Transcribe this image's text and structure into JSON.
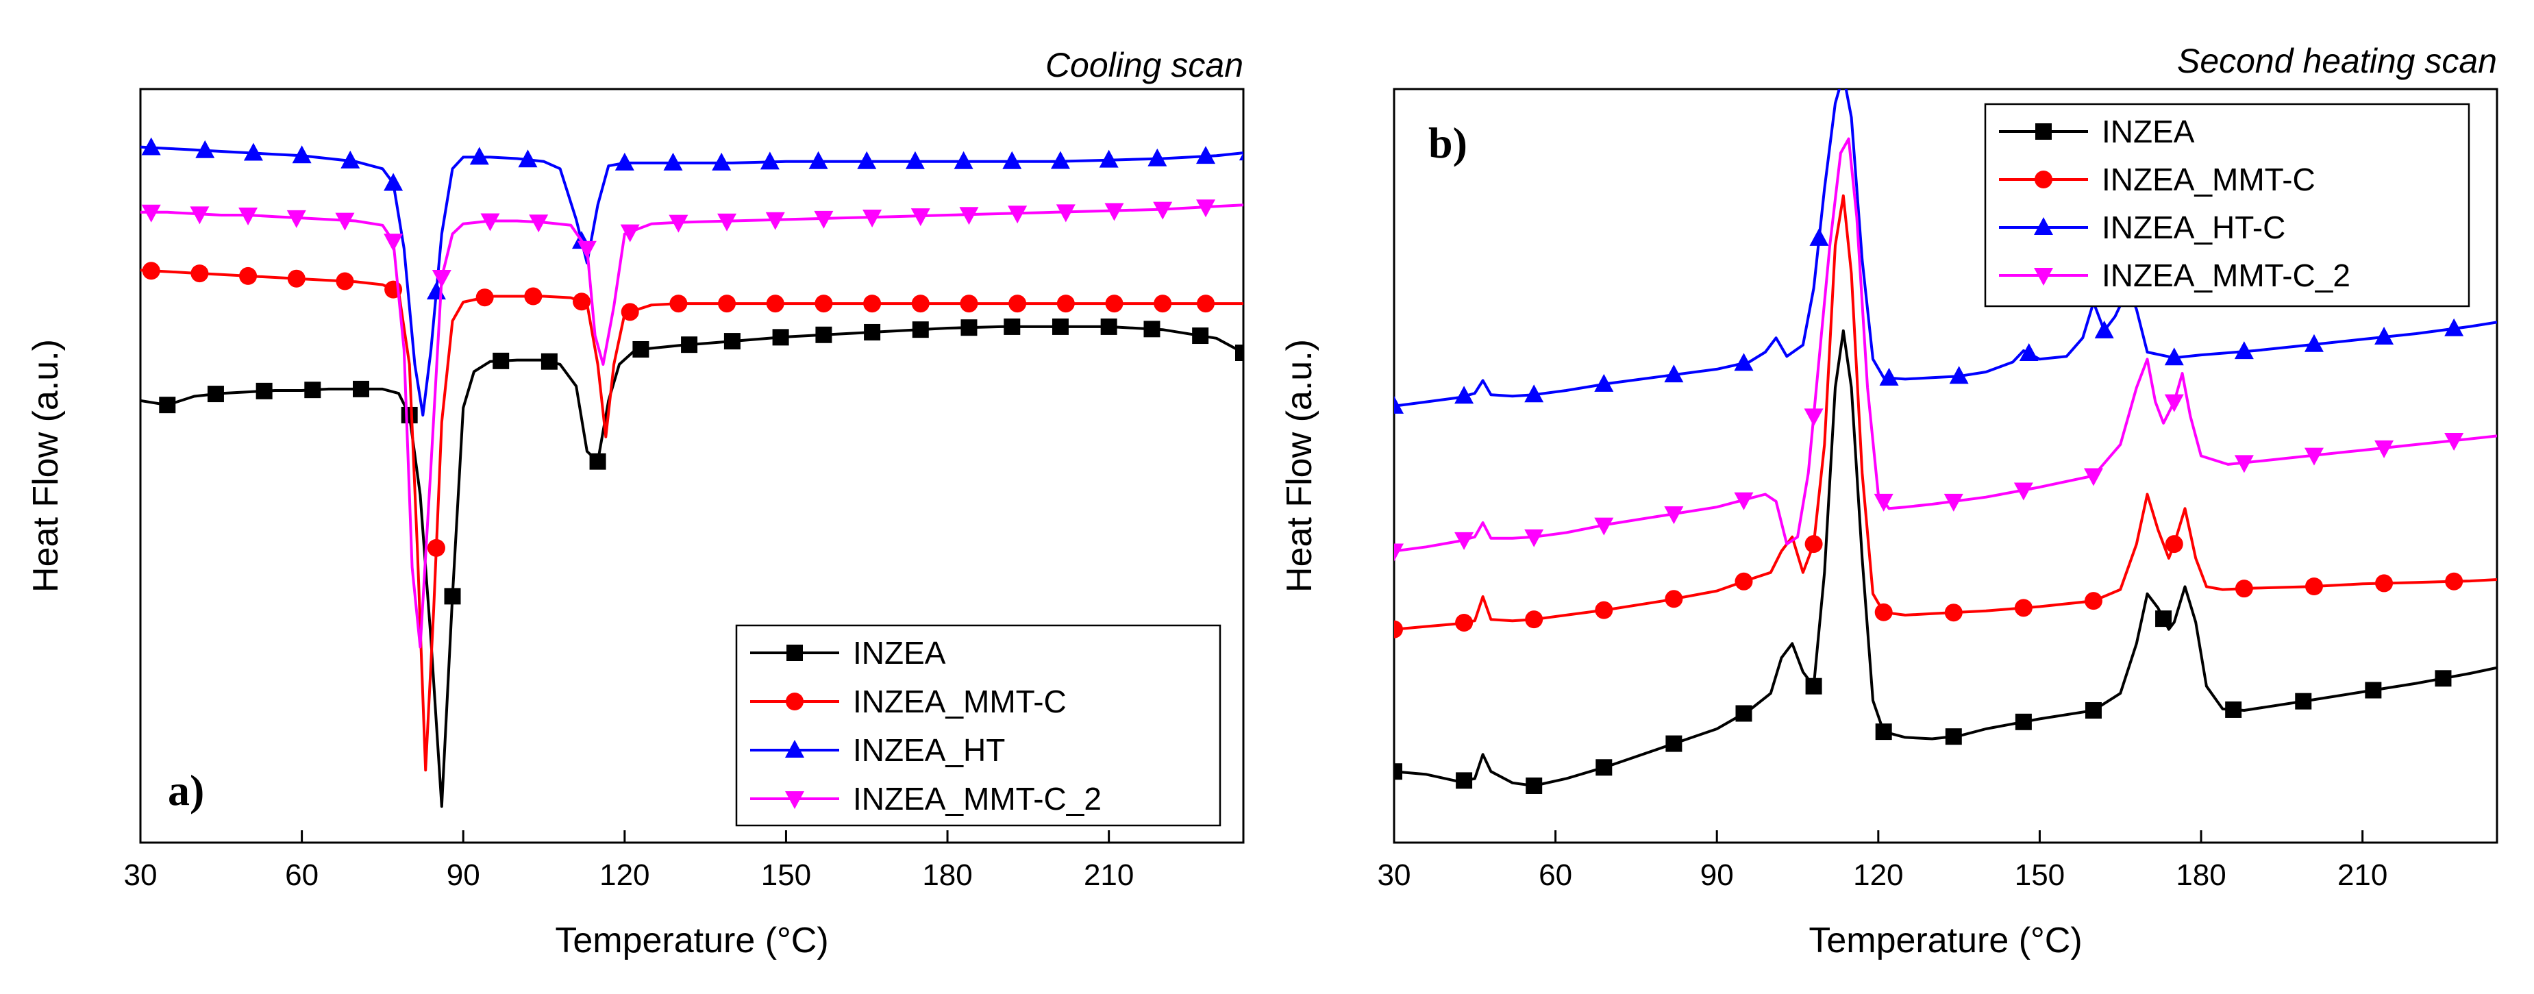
{
  "chart_data": [
    {
      "type": "line",
      "panel_label": "a)",
      "title": "Cooling scan",
      "xlabel": "Temperature (°C)",
      "ylabel": "Heat Flow (a.u.)",
      "xlim": [
        30,
        235
      ],
      "ylim": [
        -3.6,
        1.6
      ],
      "xticks": [
        30,
        60,
        90,
        120,
        150,
        180,
        210
      ],
      "grid": false,
      "yticklabels": false,
      "legend": "bottom-right",
      "series": [
        {
          "name": "INZEA",
          "color": "#000000",
          "marker": "square",
          "x": [
            30,
            35,
            40,
            45,
            50,
            55,
            60,
            65,
            70,
            75,
            78,
            80,
            82,
            84,
            86,
            88,
            90,
            92,
            95,
            100,
            105,
            108,
            111,
            113,
            115,
            117,
            119,
            122,
            130,
            140,
            150,
            160,
            170,
            180,
            190,
            200,
            210,
            220,
            230,
            235
          ],
          "y": [
            -0.55,
            -0.58,
            -0.52,
            -0.5,
            -0.49,
            -0.48,
            -0.48,
            -0.47,
            -0.47,
            -0.47,
            -0.5,
            -0.65,
            -1.2,
            -2.2,
            -3.35,
            -1.9,
            -0.6,
            -0.35,
            -0.28,
            -0.27,
            -0.27,
            -0.3,
            -0.45,
            -0.9,
            -0.97,
            -0.55,
            -0.3,
            -0.2,
            -0.17,
            -0.14,
            -0.11,
            -0.09,
            -0.07,
            -0.05,
            -0.04,
            -0.04,
            -0.04,
            -0.06,
            -0.12,
            -0.22
          ],
          "marker_x": [
            35,
            44,
            53,
            62,
            71,
            80,
            88,
            97,
            106,
            115,
            123,
            132,
            140,
            149,
            157,
            166,
            175,
            184,
            192,
            201,
            210,
            218,
            227,
            235
          ]
        },
        {
          "name": "INZEA_MMT-C",
          "color": "#ff0000",
          "marker": "circle",
          "x": [
            30,
            35,
            40,
            45,
            50,
            55,
            60,
            65,
            70,
            75,
            78,
            80,
            81.5,
            83,
            84.5,
            86,
            88,
            90,
            95,
            100,
            105,
            110,
            113,
            115,
            116.5,
            118,
            120,
            125,
            130,
            140,
            150,
            160,
            170,
            180,
            190,
            200,
            210,
            220,
            230,
            235
          ],
          "y": [
            0.35,
            0.34,
            0.33,
            0.32,
            0.31,
            0.3,
            0.29,
            0.28,
            0.27,
            0.25,
            0.2,
            -0.3,
            -1.6,
            -3.1,
            -2.0,
            -0.7,
            0.0,
            0.13,
            0.17,
            0.17,
            0.17,
            0.16,
            0.12,
            -0.3,
            -0.8,
            -0.3,
            0.05,
            0.11,
            0.12,
            0.12,
            0.12,
            0.12,
            0.12,
            0.12,
            0.12,
            0.12,
            0.12,
            0.12,
            0.12,
            0.12
          ],
          "marker_x": [
            32,
            41,
            50,
            59,
            68,
            77,
            85,
            94,
            103,
            112,
            121,
            130,
            139,
            148,
            157,
            166,
            175,
            184,
            193,
            202,
            211,
            220,
            228
          ]
        },
        {
          "name": "INZEA_HT",
          "color": "#0000ff",
          "marker": "triangle-up",
          "x": [
            30,
            35,
            40,
            45,
            50,
            55,
            60,
            65,
            70,
            75,
            77,
            79,
            81,
            82.5,
            84,
            86,
            88,
            90,
            95,
            100,
            105,
            108,
            111,
            113,
            115,
            117,
            120,
            130,
            140,
            150,
            160,
            170,
            180,
            190,
            200,
            210,
            220,
            230,
            235
          ],
          "y": [
            1.2,
            1.19,
            1.18,
            1.17,
            1.16,
            1.15,
            1.14,
            1.12,
            1.1,
            1.05,
            0.95,
            0.5,
            -0.3,
            -0.65,
            -0.2,
            0.6,
            1.05,
            1.13,
            1.13,
            1.12,
            1.1,
            1.05,
            0.7,
            0.4,
            0.8,
            1.07,
            1.09,
            1.09,
            1.09,
            1.1,
            1.1,
            1.1,
            1.1,
            1.1,
            1.1,
            1.11,
            1.12,
            1.14,
            1.16
          ],
          "marker_x": [
            32,
            42,
            51,
            60,
            69,
            77,
            85,
            93,
            102,
            112,
            120,
            129,
            138,
            147,
            156,
            165,
            174,
            183,
            192,
            201,
            210,
            219,
            228,
            236
          ]
        },
        {
          "name": "INZEA_MMT-C_2",
          "color": "#ff00ff",
          "marker": "triangle-down",
          "x": [
            30,
            35,
            40,
            45,
            50,
            55,
            60,
            65,
            70,
            75,
            77,
            79,
            80.5,
            82,
            84,
            86,
            88,
            90,
            95,
            100,
            105,
            110,
            113,
            114.5,
            116,
            118,
            120,
            125,
            130,
            140,
            150,
            160,
            170,
            180,
            190,
            200,
            210,
            220,
            230,
            235
          ],
          "y": [
            0.75,
            0.75,
            0.74,
            0.73,
            0.73,
            0.72,
            0.71,
            0.7,
            0.69,
            0.66,
            0.55,
            -0.2,
            -1.7,
            -2.25,
            -1.0,
            0.3,
            0.6,
            0.67,
            0.69,
            0.69,
            0.68,
            0.66,
            0.5,
            -0.1,
            -0.3,
            0.1,
            0.6,
            0.67,
            0.68,
            0.69,
            0.7,
            0.71,
            0.72,
            0.73,
            0.74,
            0.75,
            0.76,
            0.77,
            0.79,
            0.8
          ],
          "marker_x": [
            32,
            41,
            50,
            59,
            68,
            77,
            86,
            95,
            104,
            113,
            121,
            130,
            139,
            148,
            157,
            166,
            175,
            184,
            193,
            202,
            211,
            220,
            228
          ]
        }
      ]
    },
    {
      "type": "line",
      "panel_label": "b)",
      "title": "Second heating scan",
      "xlabel": "Temperature (°C)",
      "ylabel": "Heat Flow (a.u.)",
      "xlim": [
        30,
        235
      ],
      "ylim": [
        -1.0,
        4.3
      ],
      "xticks": [
        30,
        60,
        90,
        120,
        150,
        180,
        210
      ],
      "grid": false,
      "yticklabels": false,
      "legend": "top-right",
      "series": [
        {
          "name": "INZEA",
          "color": "#000000",
          "marker": "square",
          "x": [
            30,
            36,
            42,
            45,
            46.5,
            48,
            52,
            56,
            62,
            70,
            80,
            90,
            96,
            100,
            102,
            104,
            106,
            108,
            110,
            112,
            113.5,
            115,
            117,
            119,
            121,
            125,
            130,
            135,
            140,
            150,
            160,
            165,
            168,
            170,
            172,
            174,
            175,
            177,
            179,
            181,
            184,
            188,
            200,
            210,
            220,
            230,
            235
          ],
          "y": [
            -0.5,
            -0.52,
            -0.57,
            -0.55,
            -0.38,
            -0.5,
            -0.58,
            -0.6,
            -0.55,
            -0.46,
            -0.33,
            -0.2,
            -0.07,
            0.05,
            0.3,
            0.4,
            0.2,
            0.1,
            0.9,
            2.2,
            2.6,
            2.2,
            1.0,
            0.0,
            -0.22,
            -0.26,
            -0.27,
            -0.25,
            -0.2,
            -0.13,
            -0.07,
            0.05,
            0.4,
            0.75,
            0.65,
            0.5,
            0.55,
            0.8,
            0.55,
            0.1,
            -0.06,
            -0.07,
            0.0,
            0.06,
            0.12,
            0.19,
            0.23
          ],
          "marker_x": [
            30,
            43,
            56,
            69,
            82,
            95,
            108,
            121,
            134,
            147,
            160,
            173,
            186,
            199,
            212,
            225
          ]
        },
        {
          "name": "INZEA_MMT-C",
          "color": "#ff0000",
          "marker": "circle",
          "x": [
            30,
            36,
            42,
            45,
            46.5,
            48,
            52,
            56,
            62,
            70,
            80,
            90,
            96,
            100,
            102,
            104,
            106,
            108,
            110,
            112,
            113.5,
            115,
            117,
            119,
            121,
            125,
            130,
            140,
            150,
            160,
            165,
            168,
            170,
            172,
            174,
            175,
            177,
            179,
            181,
            184,
            190,
            200,
            210,
            220,
            230,
            235
          ],
          "y": [
            0.5,
            0.52,
            0.54,
            0.56,
            0.73,
            0.57,
            0.56,
            0.57,
            0.6,
            0.64,
            0.7,
            0.77,
            0.85,
            0.9,
            1.05,
            1.15,
            0.9,
            1.1,
            1.8,
            3.2,
            3.55,
            3.0,
            1.6,
            0.75,
            0.62,
            0.6,
            0.61,
            0.63,
            0.66,
            0.7,
            0.78,
            1.1,
            1.45,
            1.2,
            1.0,
            1.1,
            1.35,
            1.0,
            0.8,
            0.78,
            0.79,
            0.8,
            0.82,
            0.83,
            0.84,
            0.85
          ],
          "marker_x": [
            30,
            43,
            56,
            69,
            82,
            95,
            108,
            121,
            134,
            147,
            160,
            175,
            188,
            201,
            214,
            227
          ]
        },
        {
          "name": "INZEA_HT-C",
          "color": "#0000ff",
          "marker": "triangle-up",
          "x": [
            30,
            36,
            42,
            45,
            46.5,
            48,
            52,
            56,
            62,
            70,
            80,
            90,
            96,
            99,
            101,
            103,
            106,
            108,
            110,
            112,
            113.5,
            115,
            117,
            119,
            121,
            125,
            130,
            135,
            140,
            145,
            147,
            150,
            155,
            158,
            160,
            162,
            164,
            166.5,
            168,
            170,
            175,
            180,
            190,
            200,
            210,
            220,
            230,
            235
          ],
          "y": [
            2.07,
            2.1,
            2.13,
            2.16,
            2.25,
            2.15,
            2.14,
            2.15,
            2.18,
            2.23,
            2.28,
            2.33,
            2.38,
            2.45,
            2.55,
            2.42,
            2.5,
            2.9,
            3.6,
            4.2,
            4.4,
            4.1,
            3.1,
            2.4,
            2.27,
            2.26,
            2.27,
            2.28,
            2.31,
            2.38,
            2.46,
            2.4,
            2.42,
            2.55,
            2.8,
            2.6,
            2.7,
            2.9,
            2.75,
            2.45,
            2.41,
            2.43,
            2.46,
            2.5,
            2.54,
            2.58,
            2.63,
            2.66
          ],
          "marker_x": [
            30,
            43,
            56,
            69,
            82,
            95,
            109,
            122,
            135,
            148,
            162,
            175,
            188,
            201,
            214,
            227
          ]
        },
        {
          "name": "INZEA_MMT-C_2",
          "color": "#ff00ff",
          "marker": "triangle-down",
          "x": [
            30,
            36,
            42,
            45,
            46.5,
            48,
            52,
            56,
            62,
            70,
            80,
            90,
            96,
            99,
            101,
            103,
            105,
            107,
            109,
            111,
            113,
            114.5,
            116,
            118,
            120,
            122,
            125,
            130,
            140,
            150,
            160,
            165,
            168,
            170,
            171.5,
            173,
            175,
            176.5,
            178,
            180,
            185,
            190,
            200,
            210,
            220,
            230,
            235
          ],
          "y": [
            1.05,
            1.08,
            1.12,
            1.15,
            1.25,
            1.14,
            1.14,
            1.15,
            1.18,
            1.24,
            1.3,
            1.36,
            1.42,
            1.45,
            1.4,
            1.1,
            1.15,
            1.6,
            2.4,
            3.2,
            3.85,
            3.95,
            3.4,
            2.2,
            1.45,
            1.35,
            1.36,
            1.38,
            1.43,
            1.5,
            1.58,
            1.8,
            2.2,
            2.4,
            2.1,
            1.95,
            2.1,
            2.3,
            2.0,
            1.72,
            1.66,
            1.68,
            1.72,
            1.76,
            1.8,
            1.84,
            1.86
          ],
          "marker_x": [
            30,
            43,
            56,
            69,
            82,
            95,
            108,
            121,
            134,
            147,
            160,
            175,
            188,
            201,
            214,
            227
          ]
        }
      ]
    }
  ]
}
